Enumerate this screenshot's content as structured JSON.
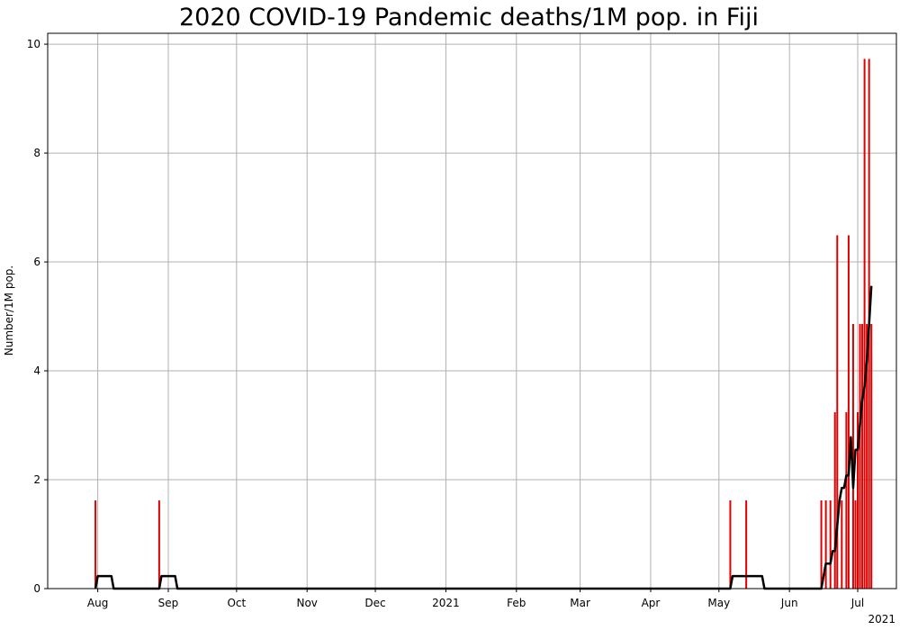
{
  "chart_data": {
    "type": "bar",
    "title": "2020 COVID-19 Pandemic deaths/1M pop. in Fiji",
    "xlabel": "",
    "ylabel": "Number/1M pop.",
    "x_axis_offset_label": "2021",
    "ylim": [
      0,
      10.2
    ],
    "y_ticks": [
      0,
      2,
      4,
      6,
      8,
      10
    ],
    "xlim": [
      "2020-07-10",
      "2021-07-18"
    ],
    "x_ticks": [
      {
        "date": "2020-08-01",
        "label": "Aug"
      },
      {
        "date": "2020-09-01",
        "label": "Sep"
      },
      {
        "date": "2020-10-01",
        "label": "Oct"
      },
      {
        "date": "2020-11-01",
        "label": "Nov"
      },
      {
        "date": "2020-12-01",
        "label": "Dec"
      },
      {
        "date": "2021-01-01",
        "label": "2021"
      },
      {
        "date": "2021-02-01",
        "label": "Feb"
      },
      {
        "date": "2021-03-01",
        "label": "Mar"
      },
      {
        "date": "2021-04-01",
        "label": "Apr"
      },
      {
        "date": "2021-05-01",
        "label": "May"
      },
      {
        "date": "2021-06-01",
        "label": "Jun"
      },
      {
        "date": "2021-07-01",
        "label": "Jul"
      }
    ],
    "grid": true,
    "bar_color": "#e00000",
    "line_color": "#000000",
    "series": [
      {
        "kind": "bar",
        "points": [
          {
            "x": "2020-07-31",
            "y": 1.62
          },
          {
            "x": "2020-08-28",
            "y": 1.62
          },
          {
            "x": "2021-05-06",
            "y": 1.62
          },
          {
            "x": "2021-05-13",
            "y": 1.62
          },
          {
            "x": "2021-06-15",
            "y": 1.62
          },
          {
            "x": "2021-06-17",
            "y": 1.62
          },
          {
            "x": "2021-06-19",
            "y": 1.62
          },
          {
            "x": "2021-06-21",
            "y": 3.24
          },
          {
            "x": "2021-06-22",
            "y": 6.49
          },
          {
            "x": "2021-06-24",
            "y": 1.62
          },
          {
            "x": "2021-06-26",
            "y": 3.24
          },
          {
            "x": "2021-06-27",
            "y": 6.49
          },
          {
            "x": "2021-06-29",
            "y": 4.86
          },
          {
            "x": "2021-06-30",
            "y": 1.62
          },
          {
            "x": "2021-07-01",
            "y": 3.24
          },
          {
            "x": "2021-07-02",
            "y": 4.86
          },
          {
            "x": "2021-07-03",
            "y": 4.86
          },
          {
            "x": "2021-07-04",
            "y": 9.73
          },
          {
            "x": "2021-07-05",
            "y": 4.86
          },
          {
            "x": "2021-07-06",
            "y": 9.73
          },
          {
            "x": "2021-07-07",
            "y": 4.86
          }
        ]
      },
      {
        "kind": "line",
        "points": [
          {
            "x": "2020-07-31",
            "y": 0
          },
          {
            "x": "2020-08-01",
            "y": 0.23
          },
          {
            "x": "2020-08-07",
            "y": 0.23
          },
          {
            "x": "2020-08-08",
            "y": 0
          },
          {
            "x": "2020-08-28",
            "y": 0
          },
          {
            "x": "2020-08-29",
            "y": 0.23
          },
          {
            "x": "2020-09-04",
            "y": 0.23
          },
          {
            "x": "2020-09-05",
            "y": 0
          },
          {
            "x": "2021-05-06",
            "y": 0
          },
          {
            "x": "2021-05-07",
            "y": 0.23
          },
          {
            "x": "2021-05-13",
            "y": 0.23
          },
          {
            "x": "2021-05-14",
            "y": 0.23
          },
          {
            "x": "2021-05-20",
            "y": 0.23
          },
          {
            "x": "2021-05-21",
            "y": 0
          },
          {
            "x": "2021-06-15",
            "y": 0
          },
          {
            "x": "2021-06-16",
            "y": 0.23
          },
          {
            "x": "2021-06-17",
            "y": 0.46
          },
          {
            "x": "2021-06-19",
            "y": 0.46
          },
          {
            "x": "2021-06-20",
            "y": 0.69
          },
          {
            "x": "2021-06-21",
            "y": 0.69
          },
          {
            "x": "2021-06-22",
            "y": 1.16
          },
          {
            "x": "2021-06-23",
            "y": 1.62
          },
          {
            "x": "2021-06-24",
            "y": 1.85
          },
          {
            "x": "2021-06-25",
            "y": 1.85
          },
          {
            "x": "2021-06-26",
            "y": 2.08
          },
          {
            "x": "2021-06-27",
            "y": 2.08
          },
          {
            "x": "2021-06-28",
            "y": 2.78
          },
          {
            "x": "2021-06-29",
            "y": 1.85
          },
          {
            "x": "2021-06-30",
            "y": 2.55
          },
          {
            "x": "2021-07-01",
            "y": 2.55
          },
          {
            "x": "2021-07-02",
            "y": 3.01
          },
          {
            "x": "2021-07-03",
            "y": 3.48
          },
          {
            "x": "2021-07-04",
            "y": 3.71
          },
          {
            "x": "2021-07-05",
            "y": 4.17
          },
          {
            "x": "2021-07-06",
            "y": 4.86
          },
          {
            "x": "2021-07-07",
            "y": 5.56
          }
        ]
      }
    ]
  }
}
